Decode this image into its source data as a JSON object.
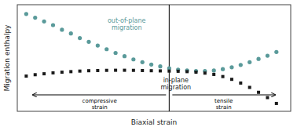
{
  "chart_data": {
    "type": "scatter",
    "xlabel": "Biaxial strain",
    "ylabel": "Migration enthalpy",
    "x": [
      -0.08,
      -0.075,
      -0.07,
      -0.065,
      -0.06,
      -0.055,
      -0.05,
      -0.045,
      -0.04,
      -0.035,
      -0.03,
      -0.025,
      -0.02,
      -0.015,
      -0.01,
      -0.005,
      0.0,
      0.005,
      0.01,
      0.015,
      0.02,
      0.025,
      0.03,
      0.035,
      0.04,
      0.045,
      0.05,
      0.055,
      0.06
    ],
    "series": [
      {
        "name": "out-of-plane\nmigration",
        "color": "#5a9a9a",
        "marker": "circle",
        "values": [
          1.05,
          1.01,
          0.97,
          0.93,
          0.88,
          0.84,
          0.79,
          0.75,
          0.71,
          0.67,
          0.63,
          0.595,
          0.56,
          0.53,
          0.505,
          0.485,
          0.465,
          0.45,
          0.44,
          0.435,
          0.435,
          0.44,
          0.455,
          0.475,
          0.5,
          0.53,
          0.565,
          0.6,
          0.64
        ]
      },
      {
        "name": "in-plane\nmigration",
        "color": "#1a1a1a",
        "marker": "square",
        "values": [
          0.38,
          0.395,
          0.405,
          0.415,
          0.422,
          0.428,
          0.434,
          0.438,
          0.44,
          0.442,
          0.443,
          0.443,
          0.442,
          0.44,
          0.438,
          0.436,
          0.434,
          0.432,
          0.428,
          0.422,
          0.412,
          0.398,
          0.375,
          0.345,
          0.305,
          0.258,
          0.205,
          0.148,
          0.085
        ]
      }
    ],
    "xlim": [
      -0.085,
      0.068
    ],
    "ylim": [
      0.0,
      1.15
    ],
    "vline": 0.0,
    "tick_labels": false,
    "annotations": [
      {
        "text": "compressive\nstrain"
      },
      {
        "text": "tensile\nstrain"
      }
    ]
  }
}
